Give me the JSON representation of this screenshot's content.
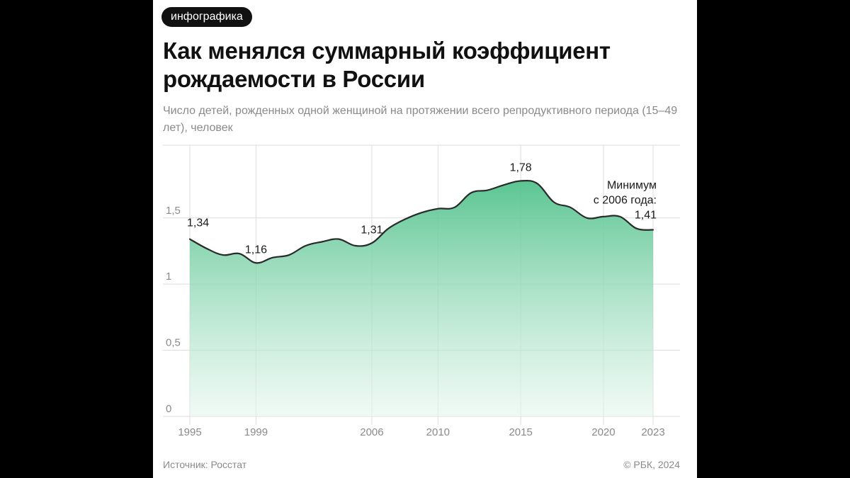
{
  "badge": "инфографика",
  "title": "Как менялся суммарный коэффициент рождаемости в России",
  "subtitle": "Число детей, рожденных одной женщиной на протяжении всего репродуктивного периода (15–49 лет), человек",
  "source": "Источник: Росстат",
  "copyright": "© РБК, 2024",
  "colors": {
    "fill_top": "#52c28c",
    "fill_bottom": "#e6f6ee",
    "line": "#2a2a2a",
    "grid": "#dcdcdc"
  },
  "chart_data": {
    "type": "area",
    "x": [
      1995,
      1996,
      1997,
      1998,
      1999,
      2000,
      2001,
      2002,
      2003,
      2004,
      2005,
      2006,
      2007,
      2008,
      2009,
      2010,
      2011,
      2012,
      2013,
      2014,
      2015,
      2016,
      2017,
      2018,
      2019,
      2020,
      2021,
      2022,
      2023
    ],
    "values": [
      1.34,
      1.27,
      1.22,
      1.23,
      1.16,
      1.2,
      1.22,
      1.29,
      1.32,
      1.34,
      1.29,
      1.31,
      1.42,
      1.49,
      1.54,
      1.57,
      1.58,
      1.69,
      1.71,
      1.75,
      1.78,
      1.76,
      1.62,
      1.58,
      1.5,
      1.51,
      1.51,
      1.42,
      1.41
    ],
    "x_ticks": [
      {
        "value": 1995,
        "label": "1995"
      },
      {
        "value": 1999,
        "label": "1999"
      },
      {
        "value": 2006,
        "label": "2006"
      },
      {
        "value": 2010,
        "label": "2010"
      },
      {
        "value": 2015,
        "label": "2015"
      },
      {
        "value": 2020,
        "label": "2020"
      },
      {
        "value": 2023,
        "label": "2023"
      }
    ],
    "y_ticks": [
      {
        "value": 0,
        "label": "0"
      },
      {
        "value": 0.5,
        "label": "0,5"
      },
      {
        "value": 1,
        "label": "1"
      },
      {
        "value": 1.5,
        "label": "1,5"
      }
    ],
    "ylim": [
      0,
      2.05
    ],
    "xlim": [
      1995,
      2023
    ],
    "grid": true,
    "annotations": [
      {
        "x": 1995,
        "y": 1.34,
        "lines": [
          "1,34"
        ]
      },
      {
        "x": 1999,
        "y": 1.16,
        "lines": [
          "1,16"
        ]
      },
      {
        "x": 2006,
        "y": 1.31,
        "lines": [
          "1,31"
        ]
      },
      {
        "x": 2015,
        "y": 1.78,
        "lines": [
          "1,78"
        ]
      },
      {
        "x": 2023,
        "y": 1.41,
        "lines": [
          "Минимум",
          "с 2006 года:",
          "1,41"
        ]
      }
    ]
  }
}
